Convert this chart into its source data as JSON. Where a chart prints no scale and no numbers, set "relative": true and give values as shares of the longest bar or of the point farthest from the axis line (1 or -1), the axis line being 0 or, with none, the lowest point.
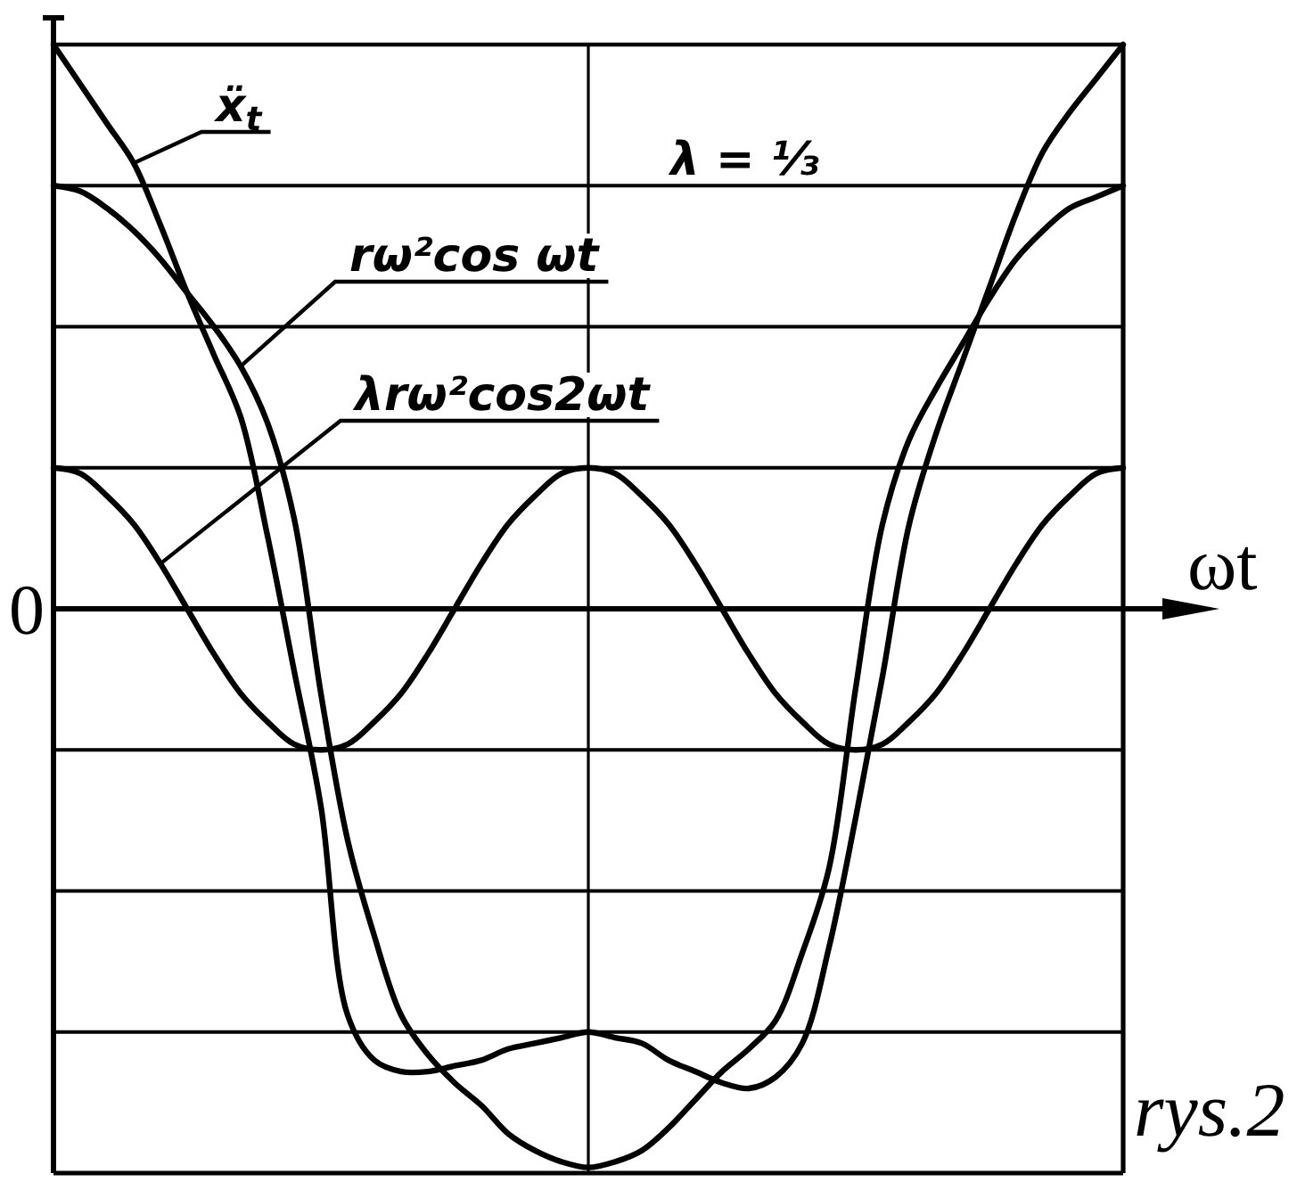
{
  "chart_data": {
    "type": "line",
    "relative": true,
    "xlabel": "ωt",
    "grid": true,
    "categories": [
      null,
      null,
      null,
      null,
      null,
      null,
      null,
      null,
      null,
      null,
      null,
      null,
      null,
      null,
      null,
      null,
      null,
      null,
      null,
      null,
      null,
      null,
      null,
      null,
      null,
      null,
      null,
      null,
      null,
      null,
      null,
      null,
      null,
      null,
      null,
      null,
      null,
      null,
      null,
      null,
      null
    ],
    "series": [
      {
        "name": "ẍ$_{t}$",
        "color": "#000000",
        "values": [
          1.0,
          0.93,
          0.86,
          0.79,
          0.68,
          0.56,
          0.45,
          0.34,
          0.13,
          -0.11,
          -0.35,
          -0.72,
          -0.8,
          -0.82,
          -0.82,
          -0.81,
          -0.8,
          -0.78,
          -0.77,
          -0.76,
          -0.75,
          -0.76,
          -0.77,
          -0.8,
          -0.82,
          -0.84,
          -0.85,
          -0.83,
          -0.77,
          -0.6,
          -0.37,
          -0.12,
          0.15,
          0.31,
          0.44,
          0.57,
          0.7,
          0.81,
          0.88,
          0.94,
          1.0
        ]
      },
      {
        "name": "rω²cos ωt",
        "color": "#000000",
        "values": [
          0.75,
          0.74,
          0.71,
          0.67,
          0.62,
          0.56,
          0.5,
          0.43,
          0.33,
          0.16,
          -0.15,
          -0.41,
          -0.58,
          -0.72,
          -0.79,
          -0.84,
          -0.88,
          -0.93,
          -0.96,
          -0.98,
          -0.99,
          -0.98,
          -0.96,
          -0.92,
          -0.87,
          -0.82,
          -0.78,
          -0.73,
          -0.61,
          -0.46,
          -0.14,
          0.15,
          0.3,
          0.39,
          0.47,
          0.55,
          0.62,
          0.67,
          0.71,
          0.73,
          0.75
        ]
      },
      {
        "name": "λrω²cos2ωt",
        "color": "#000000",
        "values": [
          0.25,
          0.24,
          0.2,
          0.15,
          0.08,
          0,
          -0.08,
          -0.15,
          -0.2,
          -0.24,
          -0.25,
          -0.24,
          -0.2,
          -0.15,
          -0.08,
          0,
          0.08,
          0.15,
          0.2,
          0.24,
          0.25,
          0.24,
          0.2,
          0.15,
          0.08,
          0,
          -0.08,
          -0.15,
          -0.2,
          -0.24,
          -0.25,
          -0.24,
          -0.2,
          -0.15,
          -0.08,
          0,
          0.08,
          0.15,
          0.2,
          0.24,
          0.25
        ]
      }
    ],
    "annotations": [
      "λ = ⅓",
      "0",
      "rys.2"
    ]
  }
}
